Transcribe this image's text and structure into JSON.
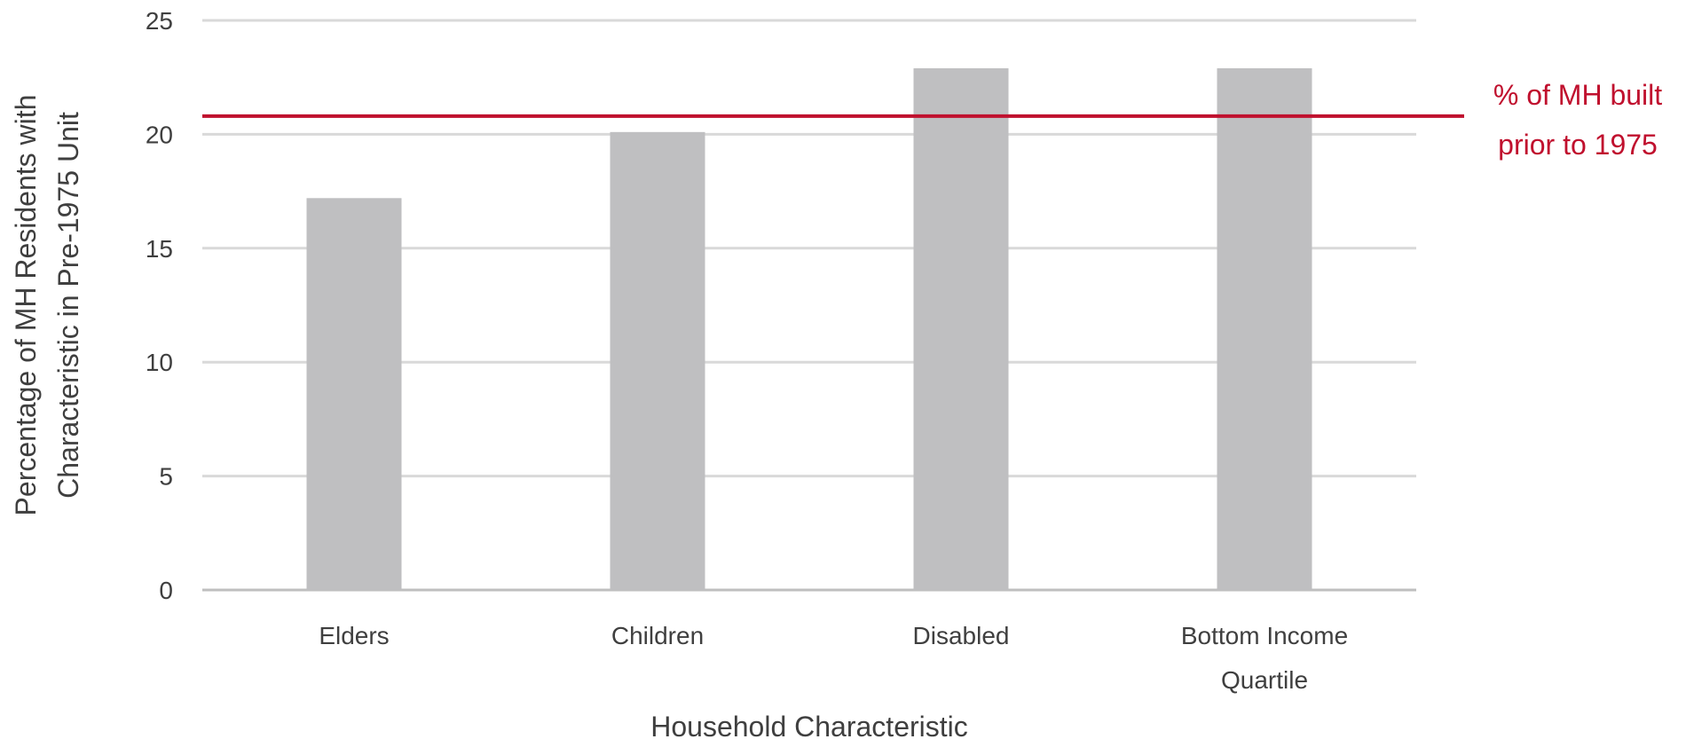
{
  "chart_data": {
    "type": "bar",
    "categories": [
      "Elders",
      "Children",
      "Disabled",
      "Bottom Income Quartile"
    ],
    "category_label_lines": [
      [
        "Elders"
      ],
      [
        "Children"
      ],
      [
        "Disabled"
      ],
      [
        "Bottom Income",
        "Quartile"
      ]
    ],
    "values": [
      17.2,
      20.1,
      22.9,
      22.9
    ],
    "xlabel": "Household Characteristic",
    "ylabel_lines": [
      "Percentage of MH Residents with",
      "Characteristic in Pre-1975 Unit"
    ],
    "ylim": [
      0,
      25
    ],
    "yticks": [
      0,
      5,
      10,
      15,
      20,
      25
    ],
    "grid": true,
    "reference_line": {
      "value": 20.8,
      "label_lines": [
        "% of MH built",
        "prior to 1975"
      ]
    },
    "colors": {
      "bar": "#bfbfc1",
      "grid": "#d9d9d9",
      "axis": "#bfbfbf",
      "reference": "#c0102e",
      "text": "#3f3f3f"
    }
  }
}
